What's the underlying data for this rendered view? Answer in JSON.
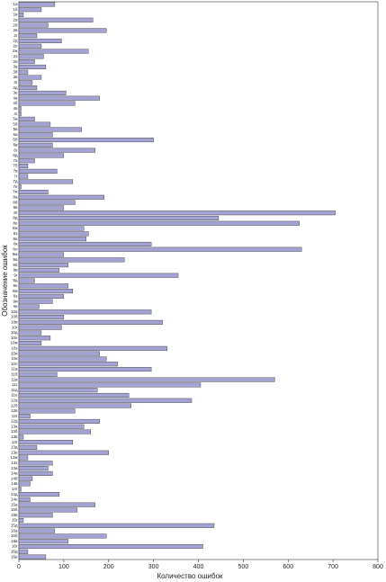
{
  "chart_data": {
    "type": "barh",
    "xlabel": "Количество ошибок",
    "ylabel": "Обозначение ошибок",
    "color": "#a3a3d3",
    "xlim": [
      0,
      800
    ],
    "xticks": [
      0,
      100,
      200,
      300,
      400,
      500,
      600,
      700,
      800
    ],
    "categories": [
      "1а",
      "1б",
      "1в",
      "2а",
      "2б",
      "2в",
      "2г",
      "2д",
      "2е",
      "2ж",
      "2з",
      "2и",
      "3а",
      "3б",
      "3в",
      "3г",
      "3д",
      "3е",
      "4а",
      "4б",
      "4в",
      "4г",
      "5а",
      "5б",
      "5в",
      "6а",
      "6б",
      "6в",
      "6г",
      "6д",
      "7а",
      "7б",
      "7в",
      "7г",
      "7д",
      "7е",
      "7ж",
      "8а",
      "8б",
      "8в",
      "8г",
      "8д",
      "8е",
      "8ж",
      "8з",
      "8и",
      "8к",
      "8л",
      "8м",
      "9а",
      "9б",
      "9в",
      "9г",
      "9д",
      "9е",
      "9ж",
      "9з",
      "9и",
      "9к",
      "10а",
      "10б",
      "10в",
      "10г",
      "10д",
      "10е",
      "10ж",
      "10з",
      "10и",
      "10к",
      "10л",
      "11а",
      "11б",
      "11в",
      "11г",
      "11д",
      "11е",
      "12а",
      "12б",
      "12в",
      "12г",
      "12д",
      "13а",
      "13б",
      "13в",
      "13г",
      "13д",
      "13е",
      "13ж",
      "13з",
      "13и",
      "14а",
      "14б",
      "14в",
      "14г",
      "14д",
      "14е",
      "15а",
      "15б",
      "15в",
      "15г",
      "15д",
      "16а",
      "16б",
      "16в",
      "16г",
      "16д",
      "16е"
    ],
    "values": [
      80,
      50,
      10,
      165,
      65,
      195,
      40,
      95,
      50,
      155,
      55,
      35,
      60,
      20,
      50,
      30,
      40,
      105,
      180,
      125,
      5,
      5,
      35,
      70,
      140,
      75,
      300,
      75,
      170,
      100,
      35,
      20,
      85,
      20,
      120,
      5,
      65,
      190,
      125,
      100,
      705,
      445,
      625,
      145,
      155,
      150,
      295,
      630,
      100,
      235,
      110,
      90,
      355,
      35,
      110,
      120,
      100,
      75,
      45,
      295,
      100,
      320,
      95,
      50,
      70,
      50,
      330,
      180,
      195,
      220,
      295,
      85,
      570,
      405,
      175,
      245,
      385,
      250,
      125,
      25,
      180,
      145,
      160,
      10,
      120,
      40,
      200,
      20,
      75,
      65,
      75,
      30,
      25,
      5,
      90,
      25,
      170,
      130,
      75,
      10,
      435,
      80,
      195,
      110,
      410,
      20,
      60
    ]
  }
}
